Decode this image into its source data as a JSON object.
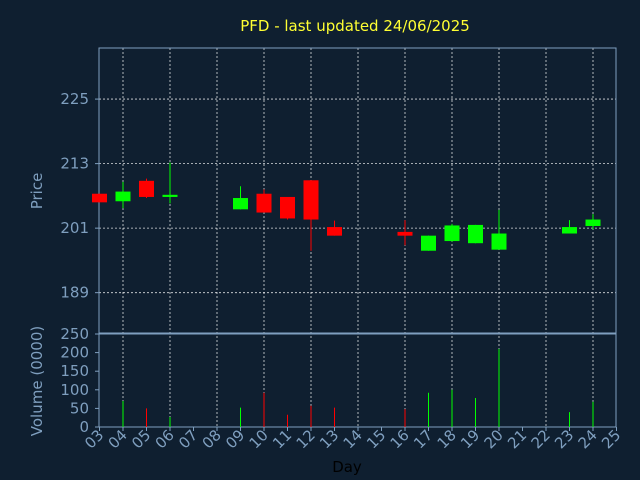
{
  "chart_data": {
    "type": "candlestick",
    "title": "PFD - last updated 24/06/2025",
    "colors": {
      "up": "#00ff00",
      "down": "#ff0000",
      "background": "#0f1f30",
      "axis": "#7f9fbf",
      "title": "#ffff33"
    },
    "price_axis": {
      "ylabel": "Price",
      "ticks": [
        "225",
        "213",
        "201",
        "189"
      ],
      "tick_values": [
        225,
        213,
        201,
        189
      ],
      "ylim": [
        181.5,
        234.5
      ],
      "grid": true
    },
    "volume_axis": {
      "ylabel": "Volume (0000)",
      "ticks": [
        "250",
        "200",
        "150",
        "100",
        "50",
        "0"
      ],
      "tick_values": [
        250,
        200,
        150,
        100,
        50,
        0
      ],
      "ylim": [
        0,
        250
      ]
    },
    "x_axis": {
      "xlabel": "Day",
      "ticks": [
        "03",
        "04",
        "05",
        "06",
        "07",
        "08",
        "09",
        "10",
        "11",
        "12",
        "13",
        "14",
        "15",
        "16",
        "17",
        "18",
        "19",
        "20",
        "21",
        "22",
        "23",
        "24",
        "25"
      ],
      "grid_every_other_from_04": true
    },
    "candles": [
      {
        "day": "03",
        "open": 207.4,
        "close": 205.8,
        "high": 207.4,
        "low": 205.8,
        "volume": 0
      },
      {
        "day": "04",
        "open": 206.0,
        "close": 207.8,
        "high": 209.6,
        "low": 204.7,
        "volume": 70
      },
      {
        "day": "05",
        "open": 209.8,
        "close": 206.8,
        "high": 210.2,
        "low": 206.6,
        "volume": 50
      },
      {
        "day": "06",
        "open": 206.8,
        "close": 207.2,
        "high": 213.2,
        "low": 205.6,
        "volume": 27
      },
      {
        "day": "09",
        "open": 204.5,
        "close": 206.6,
        "high": 208.8,
        "low": 204.5,
        "volume": 52
      },
      {
        "day": "10",
        "open": 207.4,
        "close": 203.9,
        "high": 208.2,
        "low": 203.9,
        "volume": 92
      },
      {
        "day": "11",
        "open": 206.8,
        "close": 202.8,
        "high": 206.8,
        "low": 202.6,
        "volume": 33
      },
      {
        "day": "12",
        "open": 209.9,
        "close": 202.6,
        "high": 209.9,
        "low": 196.8,
        "volume": 57
      },
      {
        "day": "13",
        "open": 201.2,
        "close": 199.6,
        "high": 202.4,
        "low": 199.6,
        "volume": 52
      },
      {
        "day": "16",
        "open": 200.3,
        "close": 199.6,
        "high": 202.5,
        "low": 197.8,
        "volume": 48
      },
      {
        "day": "17",
        "open": 196.8,
        "close": 199.6,
        "high": 199.6,
        "low": 196.8,
        "volume": 92
      },
      {
        "day": "18",
        "open": 198.6,
        "close": 201.5,
        "high": 201.8,
        "low": 198.5,
        "volume": 100
      },
      {
        "day": "19",
        "open": 198.2,
        "close": 201.6,
        "high": 201.6,
        "low": 198.2,
        "volume": 78
      },
      {
        "day": "20",
        "open": 197.0,
        "close": 200.0,
        "high": 204.4,
        "low": 197.0,
        "volume": 210
      },
      {
        "day": "23",
        "open": 200.0,
        "close": 201.2,
        "high": 202.5,
        "low": 200.0,
        "volume": 40
      },
      {
        "day": "24",
        "open": 201.4,
        "close": 202.6,
        "high": 203.6,
        "low": 200.8,
        "volume": 68
      }
    ]
  }
}
